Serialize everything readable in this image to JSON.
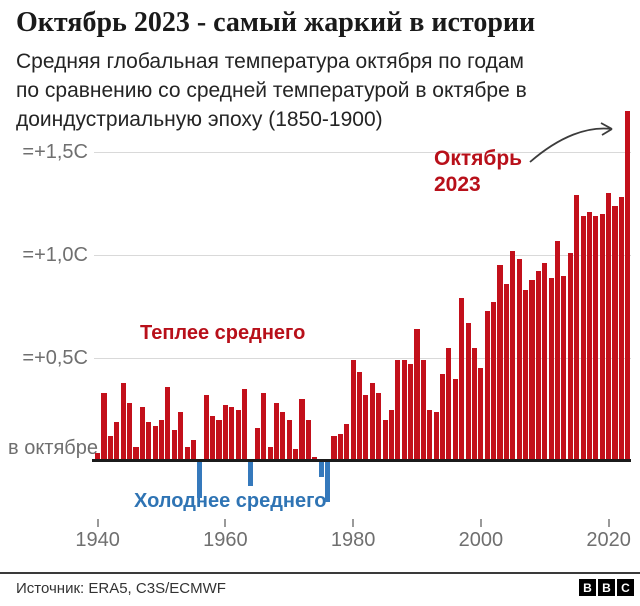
{
  "chart_data": {
    "type": "bar",
    "title": "Октябрь 2023 - самый жаркий в истории",
    "subtitle_lines": [
      "Средняя глобальная температура октября по годам",
      "по сравнению со средней температурой в октябре в",
      "доиндустриальную эпоху (1850-1900)"
    ],
    "year_start": 1940,
    "years": [
      1940,
      1941,
      1942,
      1943,
      1944,
      1945,
      1946,
      1947,
      1948,
      1949,
      1950,
      1951,
      1952,
      1953,
      1954,
      1955,
      1956,
      1957,
      1958,
      1959,
      1960,
      1961,
      1962,
      1963,
      1964,
      1965,
      1966,
      1967,
      1968,
      1969,
      1970,
      1971,
      1972,
      1973,
      1974,
      1975,
      1976,
      1977,
      1978,
      1979,
      1980,
      1981,
      1982,
      1983,
      1984,
      1985,
      1986,
      1987,
      1988,
      1989,
      1990,
      1991,
      1992,
      1993,
      1994,
      1995,
      1996,
      1997,
      1998,
      1999,
      2000,
      2001,
      2002,
      2003,
      2004,
      2005,
      2006,
      2007,
      2008,
      2009,
      2010,
      2011,
      2012,
      2013,
      2014,
      2015,
      2016,
      2017,
      2018,
      2019,
      2020,
      2021,
      2022,
      2023
    ],
    "values": [
      0.04,
      0.33,
      0.12,
      0.19,
      0.38,
      0.28,
      0.07,
      0.26,
      0.19,
      0.17,
      0.2,
      0.36,
      0.15,
      0.24,
      0.07,
      0.1,
      -0.18,
      0.32,
      0.22,
      0.2,
      0.27,
      0.26,
      0.25,
      0.35,
      -0.12,
      0.16,
      0.33,
      0.07,
      0.28,
      0.24,
      0.2,
      0.06,
      0.3,
      0.2,
      0.02,
      -0.08,
      -0.2,
      0.12,
      0.13,
      0.18,
      0.49,
      0.43,
      0.32,
      0.38,
      0.33,
      0.2,
      0.25,
      0.49,
      0.49,
      0.47,
      0.64,
      0.49,
      0.25,
      0.24,
      0.42,
      0.55,
      0.4,
      0.79,
      0.67,
      0.55,
      0.45,
      0.73,
      0.77,
      0.95,
      0.86,
      1.02,
      0.98,
      0.83,
      0.88,
      0.92,
      0.96,
      0.89,
      1.07,
      0.9,
      1.01,
      1.29,
      1.19,
      1.21,
      1.19,
      1.2,
      1.3,
      1.24,
      1.28,
      1.7
    ],
    "ylim": [
      -0.25,
      1.75
    ],
    "grid": "horizontal",
    "legend_position": "none",
    "ylabel_gridlines": [
      {
        "label": "=+1,5C",
        "value": 1.5
      },
      {
        "label": "=+1,0C",
        "value": 1.0
      },
      {
        "label": "=+0,5C",
        "value": 0.5
      }
    ],
    "baseline_label": "в октябре",
    "xticks": [
      {
        "label": "1940",
        "year": 1940
      },
      {
        "label": "1960",
        "year": 1960
      },
      {
        "label": "1980",
        "year": 1980
      },
      {
        "label": "2000",
        "year": 2000
      },
      {
        "label": "2020",
        "year": 2020
      }
    ],
    "annotations": {
      "peak_label": "Октябрь 2023",
      "warm_label": "Теплее среднего",
      "cold_label": "Холоднее среднего"
    },
    "colors": {
      "warm_bar": "#c3101b",
      "cold_bar": "#3579bc",
      "warm_text": "#b8101a",
      "cold_text": "#2f74b4"
    }
  },
  "footer": {
    "source": "Источник: ERA5, C3S/ECMWF",
    "logo_letters": [
      "B",
      "B",
      "C"
    ]
  }
}
